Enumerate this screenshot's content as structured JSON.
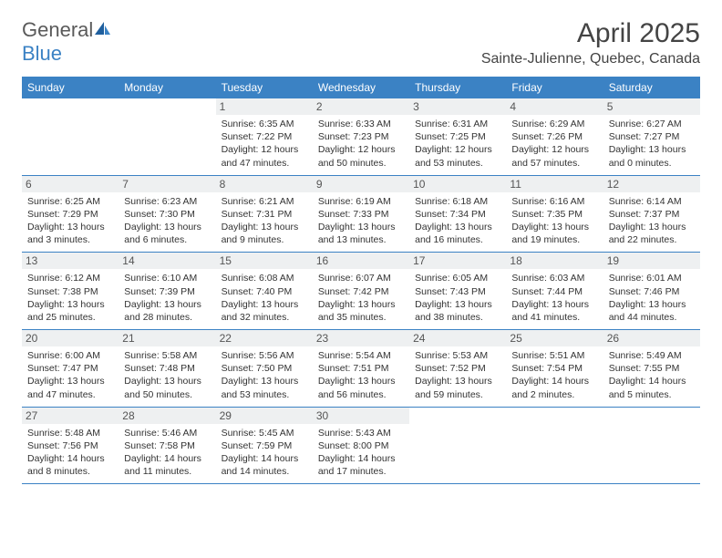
{
  "brand": {
    "part1": "General",
    "part2": "Blue"
  },
  "title": "April 2025",
  "location": "Sainte-Julienne, Quebec, Canada",
  "colors": {
    "accent": "#3b82c4",
    "headerRow": "#eef0f1",
    "text": "#333333",
    "bg": "#ffffff"
  },
  "dayHeaders": [
    "Sunday",
    "Monday",
    "Tuesday",
    "Wednesday",
    "Thursday",
    "Friday",
    "Saturday"
  ],
  "weeks": [
    [
      null,
      null,
      {
        "n": "1",
        "sr": "Sunrise: 6:35 AM",
        "ss": "Sunset: 7:22 PM",
        "dl": "Daylight: 12 hours and 47 minutes."
      },
      {
        "n": "2",
        "sr": "Sunrise: 6:33 AM",
        "ss": "Sunset: 7:23 PM",
        "dl": "Daylight: 12 hours and 50 minutes."
      },
      {
        "n": "3",
        "sr": "Sunrise: 6:31 AM",
        "ss": "Sunset: 7:25 PM",
        "dl": "Daylight: 12 hours and 53 minutes."
      },
      {
        "n": "4",
        "sr": "Sunrise: 6:29 AM",
        "ss": "Sunset: 7:26 PM",
        "dl": "Daylight: 12 hours and 57 minutes."
      },
      {
        "n": "5",
        "sr": "Sunrise: 6:27 AM",
        "ss": "Sunset: 7:27 PM",
        "dl": "Daylight: 13 hours and 0 minutes."
      }
    ],
    [
      {
        "n": "6",
        "sr": "Sunrise: 6:25 AM",
        "ss": "Sunset: 7:29 PM",
        "dl": "Daylight: 13 hours and 3 minutes."
      },
      {
        "n": "7",
        "sr": "Sunrise: 6:23 AM",
        "ss": "Sunset: 7:30 PM",
        "dl": "Daylight: 13 hours and 6 minutes."
      },
      {
        "n": "8",
        "sr": "Sunrise: 6:21 AM",
        "ss": "Sunset: 7:31 PM",
        "dl": "Daylight: 13 hours and 9 minutes."
      },
      {
        "n": "9",
        "sr": "Sunrise: 6:19 AM",
        "ss": "Sunset: 7:33 PM",
        "dl": "Daylight: 13 hours and 13 minutes."
      },
      {
        "n": "10",
        "sr": "Sunrise: 6:18 AM",
        "ss": "Sunset: 7:34 PM",
        "dl": "Daylight: 13 hours and 16 minutes."
      },
      {
        "n": "11",
        "sr": "Sunrise: 6:16 AM",
        "ss": "Sunset: 7:35 PM",
        "dl": "Daylight: 13 hours and 19 minutes."
      },
      {
        "n": "12",
        "sr": "Sunrise: 6:14 AM",
        "ss": "Sunset: 7:37 PM",
        "dl": "Daylight: 13 hours and 22 minutes."
      }
    ],
    [
      {
        "n": "13",
        "sr": "Sunrise: 6:12 AM",
        "ss": "Sunset: 7:38 PM",
        "dl": "Daylight: 13 hours and 25 minutes."
      },
      {
        "n": "14",
        "sr": "Sunrise: 6:10 AM",
        "ss": "Sunset: 7:39 PM",
        "dl": "Daylight: 13 hours and 28 minutes."
      },
      {
        "n": "15",
        "sr": "Sunrise: 6:08 AM",
        "ss": "Sunset: 7:40 PM",
        "dl": "Daylight: 13 hours and 32 minutes."
      },
      {
        "n": "16",
        "sr": "Sunrise: 6:07 AM",
        "ss": "Sunset: 7:42 PM",
        "dl": "Daylight: 13 hours and 35 minutes."
      },
      {
        "n": "17",
        "sr": "Sunrise: 6:05 AM",
        "ss": "Sunset: 7:43 PM",
        "dl": "Daylight: 13 hours and 38 minutes."
      },
      {
        "n": "18",
        "sr": "Sunrise: 6:03 AM",
        "ss": "Sunset: 7:44 PM",
        "dl": "Daylight: 13 hours and 41 minutes."
      },
      {
        "n": "19",
        "sr": "Sunrise: 6:01 AM",
        "ss": "Sunset: 7:46 PM",
        "dl": "Daylight: 13 hours and 44 minutes."
      }
    ],
    [
      {
        "n": "20",
        "sr": "Sunrise: 6:00 AM",
        "ss": "Sunset: 7:47 PM",
        "dl": "Daylight: 13 hours and 47 minutes."
      },
      {
        "n": "21",
        "sr": "Sunrise: 5:58 AM",
        "ss": "Sunset: 7:48 PM",
        "dl": "Daylight: 13 hours and 50 minutes."
      },
      {
        "n": "22",
        "sr": "Sunrise: 5:56 AM",
        "ss": "Sunset: 7:50 PM",
        "dl": "Daylight: 13 hours and 53 minutes."
      },
      {
        "n": "23",
        "sr": "Sunrise: 5:54 AM",
        "ss": "Sunset: 7:51 PM",
        "dl": "Daylight: 13 hours and 56 minutes."
      },
      {
        "n": "24",
        "sr": "Sunrise: 5:53 AM",
        "ss": "Sunset: 7:52 PM",
        "dl": "Daylight: 13 hours and 59 minutes."
      },
      {
        "n": "25",
        "sr": "Sunrise: 5:51 AM",
        "ss": "Sunset: 7:54 PM",
        "dl": "Daylight: 14 hours and 2 minutes."
      },
      {
        "n": "26",
        "sr": "Sunrise: 5:49 AM",
        "ss": "Sunset: 7:55 PM",
        "dl": "Daylight: 14 hours and 5 minutes."
      }
    ],
    [
      {
        "n": "27",
        "sr": "Sunrise: 5:48 AM",
        "ss": "Sunset: 7:56 PM",
        "dl": "Daylight: 14 hours and 8 minutes."
      },
      {
        "n": "28",
        "sr": "Sunrise: 5:46 AM",
        "ss": "Sunset: 7:58 PM",
        "dl": "Daylight: 14 hours and 11 minutes."
      },
      {
        "n": "29",
        "sr": "Sunrise: 5:45 AM",
        "ss": "Sunset: 7:59 PM",
        "dl": "Daylight: 14 hours and 14 minutes."
      },
      {
        "n": "30",
        "sr": "Sunrise: 5:43 AM",
        "ss": "Sunset: 8:00 PM",
        "dl": "Daylight: 14 hours and 17 minutes."
      },
      null,
      null,
      null
    ]
  ]
}
